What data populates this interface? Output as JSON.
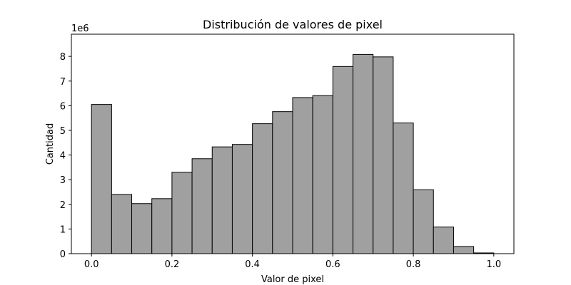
{
  "chart_data": {
    "type": "bar",
    "title": "Distribución de valores de pixel",
    "xlabel": "Valor de pixel",
    "ylabel": "Cantidad",
    "y_offset_label": "1e6",
    "y_scale": 1000000,
    "bin_width": 0.05,
    "bins_start": [
      0.0,
      0.05,
      0.1,
      0.15,
      0.2,
      0.25,
      0.3,
      0.35,
      0.4,
      0.45,
      0.5,
      0.55,
      0.6,
      0.65,
      0.7,
      0.75,
      0.8,
      0.85,
      0.9,
      0.95
    ],
    "values": [
      6050000,
      2400000,
      2030000,
      2230000,
      3300000,
      3850000,
      4330000,
      4430000,
      5270000,
      5760000,
      6330000,
      6410000,
      7590000,
      8080000,
      7980000,
      5300000,
      2590000,
      1080000,
      290000,
      30000
    ],
    "xlim": [
      -0.05,
      1.05
    ],
    "ylim": [
      0,
      8900000
    ],
    "xticks": [
      0.0,
      0.2,
      0.4,
      0.6,
      0.8,
      1.0
    ],
    "xtick_labels": [
      "0.0",
      "0.2",
      "0.4",
      "0.6",
      "0.8",
      "1.0"
    ],
    "yticks": [
      0,
      1,
      2,
      3,
      4,
      5,
      6,
      7,
      8
    ],
    "ytick_labels": [
      "0",
      "1",
      "2",
      "3",
      "4",
      "5",
      "6",
      "7",
      "8"
    ],
    "bar_color": "#a0a0a0",
    "edge_color": "#000000",
    "grid": false,
    "legend": "none"
  }
}
